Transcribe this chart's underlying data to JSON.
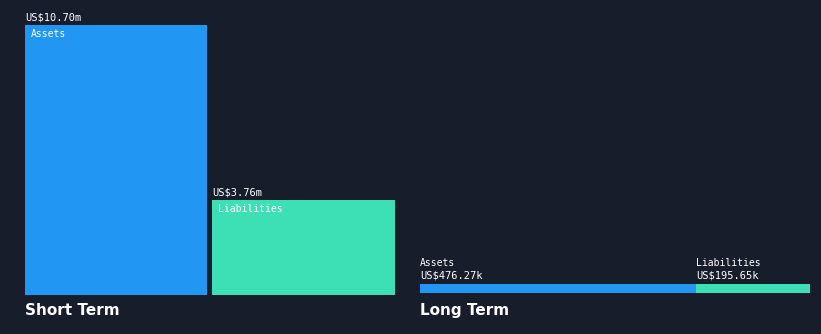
{
  "bg_color": "#181d2b",
  "text_color": "#ffffff",
  "assets_color": "#2196f3",
  "liabilities_color": "#3de0b4",
  "short_term": {
    "assets_value": 10.7,
    "liabilities_value": 3.76,
    "assets_label": "US$10.70m",
    "liabilities_label": "US$3.76m",
    "assets_text": "Assets",
    "liabilities_text": "Liabilities"
  },
  "long_term": {
    "assets_value": 476.27,
    "liabilities_value": 195.65,
    "assets_label": "US$476.27k",
    "liabilities_label": "US$195.65k",
    "assets_text": "Assets",
    "liabilities_text": "Liabilities"
  },
  "section_label_short": "Short Term",
  "section_label_long": "Long Term",
  "section_fontsize": 11,
  "label_fontsize": 7.5,
  "inner_fontsize": 7.0
}
